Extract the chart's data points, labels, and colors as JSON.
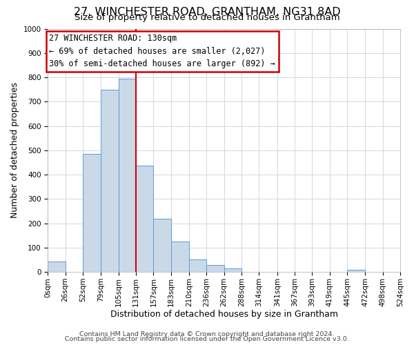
{
  "title": "27, WINCHESTER ROAD, GRANTHAM, NG31 8AD",
  "subtitle": "Size of property relative to detached houses in Grantham",
  "xlabel": "Distribution of detached houses by size in Grantham",
  "ylabel": "Number of detached properties",
  "bar_edges": [
    0,
    26,
    52,
    79,
    105,
    131,
    157,
    183,
    210,
    236,
    262,
    288,
    314,
    341,
    367,
    393,
    419,
    445,
    472,
    498,
    524
  ],
  "bar_heights": [
    44,
    0,
    485,
    750,
    795,
    438,
    220,
    125,
    52,
    28,
    15,
    0,
    0,
    0,
    0,
    0,
    0,
    8,
    0,
    0
  ],
  "bar_color": "#c9d9e8",
  "bar_edge_color": "#5b9bd5",
  "grid_color": "#d0d8e4",
  "vline_x": 131,
  "vline_color": "#cc0000",
  "annotation_line1": "27 WINCHESTER ROAD: 130sqm",
  "annotation_line2": "← 69% of detached houses are smaller (2,027)",
  "annotation_line3": "30% of semi-detached houses are larger (892) →",
  "annotation_box_color": "#ffffff",
  "annotation_box_edge": "#cc0000",
  "xlim": [
    0,
    524
  ],
  "ylim": [
    0,
    1000
  ],
  "yticks": [
    0,
    100,
    200,
    300,
    400,
    500,
    600,
    700,
    800,
    900,
    1000
  ],
  "xtick_labels": [
    "0sqm",
    "26sqm",
    "52sqm",
    "79sqm",
    "105sqm",
    "131sqm",
    "157sqm",
    "183sqm",
    "210sqm",
    "236sqm",
    "262sqm",
    "288sqm",
    "314sqm",
    "341sqm",
    "367sqm",
    "393sqm",
    "419sqm",
    "445sqm",
    "472sqm",
    "498sqm",
    "524sqm"
  ],
  "footer_lines": [
    "Contains HM Land Registry data © Crown copyright and database right 2024.",
    "Contains public sector information licensed under the Open Government Licence v3.0."
  ],
  "title_fontsize": 11.5,
  "subtitle_fontsize": 9.5,
  "xlabel_fontsize": 9,
  "ylabel_fontsize": 9,
  "tick_fontsize": 7.5,
  "annotation_fontsize": 8.5,
  "footer_fontsize": 6.8
}
